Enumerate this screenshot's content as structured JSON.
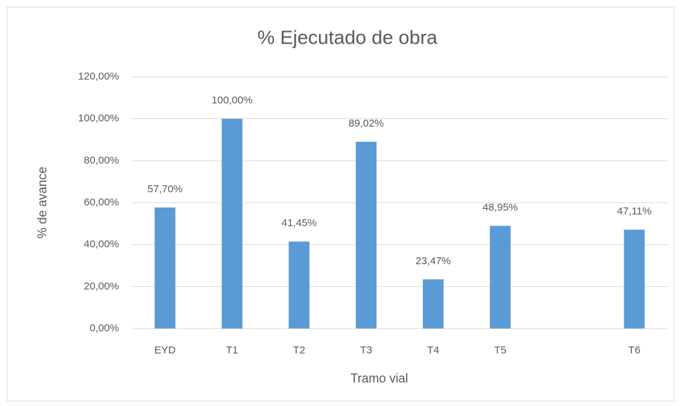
{
  "chart_data": {
    "type": "bar",
    "title": "% Ejecutado de obra",
    "x_label": "Tramo vial",
    "y_label": "% de avance",
    "categories": [
      "EYD",
      "T1",
      "T2",
      "T3",
      "T4",
      "T5",
      null,
      "T6"
    ],
    "values": [
      57.7,
      100,
      41.45,
      89.02,
      23.47,
      48.95,
      null,
      47.11
    ],
    "value_labels": [
      "57,70%",
      "100,00%",
      "41,45%",
      "89,02%",
      "23,47%",
      "48,95%",
      null,
      "47,11%"
    ],
    "color": "#5b9bd5",
    "ylim": [
      0,
      120
    ],
    "yticks": [
      {
        "value": 0,
        "label": "0,00%"
      },
      {
        "value": 20,
        "label": "20,00%"
      },
      {
        "value": 40,
        "label": "40,00%"
      },
      {
        "value": 60,
        "label": "60,00%"
      },
      {
        "value": 80,
        "label": "80,00%"
      },
      {
        "value": 100,
        "label": "100,00%"
      },
      {
        "value": 120,
        "label": "120,00%"
      }
    ],
    "grid": true
  }
}
